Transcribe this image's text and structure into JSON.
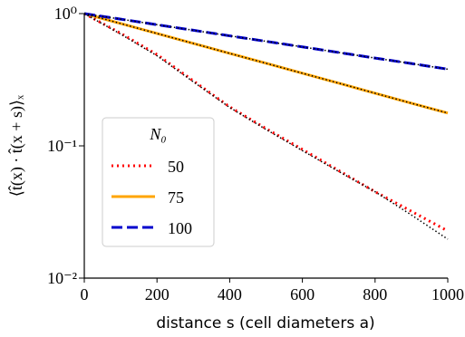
{
  "chart_data": {
    "type": "line",
    "x_label": "distance s (cell diameters a)",
    "y_label": "⟨t̂(x) · t̂(x + s)⟩ₓ",
    "x": [
      0,
      100,
      200,
      300,
      400,
      500,
      600,
      700,
      800,
      900,
      1000
    ],
    "series": [
      {
        "name": "50",
        "color": "#ff0000",
        "dash": "2 4",
        "values": [
          1,
          0.71,
          0.49,
          0.31,
          0.197,
          0.135,
          0.094,
          0.065,
          0.045,
          0.032,
          0.0227
        ]
      },
      {
        "name": "75",
        "color": "#ffa500",
        "dash": "none",
        "values": [
          1,
          0.841,
          0.707,
          0.595,
          0.5,
          0.421,
          0.354,
          0.298,
          0.25,
          0.21,
          0.177
        ]
      },
      {
        "name": "100",
        "color": "#0000cd",
        "dash": "12 5",
        "values": [
          1,
          0.908,
          0.824,
          0.748,
          0.679,
          0.617,
          0.56,
          0.508,
          0.461,
          0.419,
          0.38
        ]
      }
    ],
    "fit_lines": [
      {
        "color": "#000000",
        "values": [
          1,
          0.7,
          0.48,
          0.305,
          0.195,
          0.133,
          0.092,
          0.064,
          0.045,
          0.03,
          0.0197
        ]
      },
      {
        "color": "#000000",
        "values": [
          1,
          0.841,
          0.707,
          0.595,
          0.5,
          0.421,
          0.354,
          0.298,
          0.25,
          0.21,
          0.177
        ]
      },
      {
        "color": "#000000",
        "values": [
          1,
          0.908,
          0.824,
          0.748,
          0.679,
          0.617,
          0.56,
          0.508,
          0.461,
          0.419,
          0.38
        ]
      }
    ],
    "legend_title": "N₀",
    "legend": "lower left",
    "xlim": [
      0,
      1000
    ],
    "xticks": [
      0,
      200,
      400,
      600,
      800,
      1000
    ],
    "ylim": [
      0.01,
      1
    ],
    "yticks": [
      {
        "value": 1,
        "label": "10⁰"
      },
      {
        "value": 0.1,
        "label": "10⁻¹"
      },
      {
        "value": 0.01,
        "label": "10⁻²"
      }
    ],
    "log_y": true
  }
}
